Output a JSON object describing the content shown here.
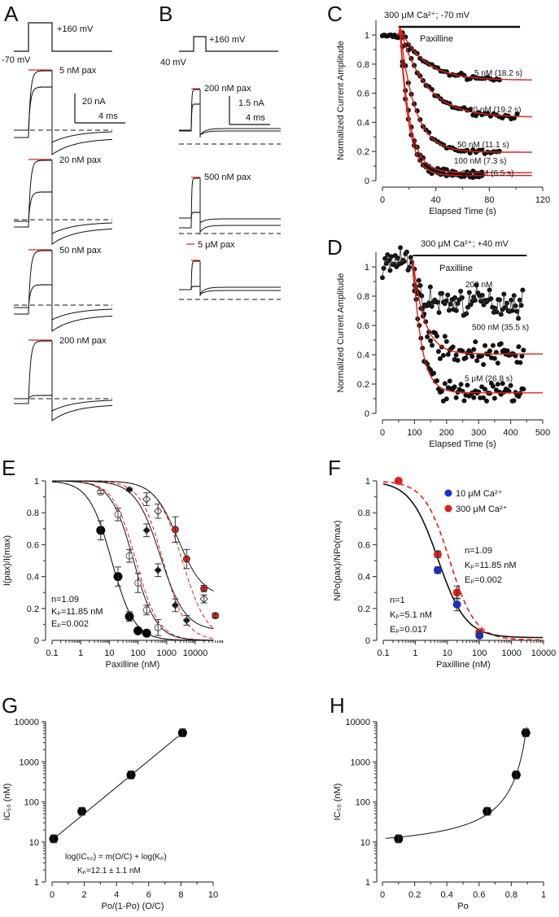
{
  "colors": {
    "fit_red": "#e0201b",
    "blue": "#1a2ee0",
    "red_point": "#e0201b",
    "black": "#111111"
  },
  "chart_data": [
    {
      "panel": "A",
      "type": "line",
      "protocol": {
        "holding": "-70 mV",
        "step": "+160 mV"
      },
      "traces": [
        {
          "label": "5 nM pax"
        },
        {
          "label": "20 nM pax"
        },
        {
          "label": "50 nM pax"
        },
        {
          "label": "200 nM pax"
        }
      ],
      "scale_bar": {
        "current": "20 nA",
        "time": "4 ms"
      }
    },
    {
      "panel": "B",
      "type": "line",
      "protocol": {
        "holding": "40 mV",
        "step": "+160 mV"
      },
      "traces": [
        {
          "label": "200 nM pax"
        },
        {
          "label": "500 nM pax"
        },
        {
          "label": "5 μM pax"
        }
      ],
      "scale_bar": {
        "current": "1.5 nA",
        "time": "4 ms"
      }
    },
    {
      "panel": "C",
      "type": "scatter",
      "title": "300 μM Ca²⁺; -70 mV",
      "bar_label": "Paxilline",
      "xlabel": "Elapsed Time (s)",
      "ylabel": "Normalized Current Amplitude",
      "xlim": [
        0,
        120
      ],
      "ylim": [
        0,
        1.1
      ],
      "xticks": [
        0,
        40,
        80,
        120
      ],
      "yticks": [
        0,
        0.2,
        0.4,
        0.6,
        0.8,
        1
      ],
      "application_start": 15,
      "application_end": 103,
      "series": [
        {
          "label": "5 nM (18.2 s)",
          "plateau": 0.69,
          "tau": 18.2,
          "t_end": 88
        },
        {
          "label": "20 nM (19.2 s)",
          "plateau": 0.435,
          "tau": 19.2,
          "t_end": 102
        },
        {
          "label": "50 nM (11.1 s)",
          "plateau": 0.195,
          "tau": 11.1,
          "t_end": 88
        },
        {
          "label": "100 nM (7.3 s)",
          "plateau": 0.055,
          "tau": 7.3,
          "t_end": 75
        },
        {
          "label": "200 nM (6.5 s)",
          "plateau": 0.035,
          "tau": 6.5,
          "t_end": 75
        }
      ]
    },
    {
      "panel": "D",
      "type": "scatter",
      "title": "300 μM Ca²⁺; +40 mV",
      "bar_label": "Paxilline",
      "xlabel": "Elapsed Time (s)",
      "ylabel": "Normalized Current Amplitude",
      "xlim": [
        0,
        500
      ],
      "ylim": [
        0,
        1.1
      ],
      "xticks": [
        0,
        100,
        200,
        300,
        400,
        500
      ],
      "yticks": [
        0,
        0.2,
        0.4,
        0.6,
        0.8,
        1
      ],
      "application_start": 95,
      "application_end": 450,
      "series": [
        {
          "label": "200 nM",
          "plateau": 0.76,
          "tau": null
        },
        {
          "label": "500 nM (35.5 s)",
          "plateau": 0.405,
          "tau": 35.5
        },
        {
          "label": "5 μM (26.8 s)",
          "plateau": 0.14,
          "tau": 26.8
        }
      ]
    },
    {
      "panel": "E",
      "type": "scatter",
      "xlabel": "Paxilline (nM)",
      "ylabel": "I(pax)/I(max)",
      "xscale": "log",
      "xlim": [
        0.1,
        50000
      ],
      "ylim": [
        0,
        1
      ],
      "xticks": [
        "0.1",
        "1",
        "10",
        "100",
        "1000",
        "10000"
      ],
      "yticks": [
        0,
        0.2,
        0.4,
        0.6,
        0.8,
        1
      ],
      "annotation": [
        "n=1.09",
        "Kₚ=11.85 nM",
        "Eₚ=0.002"
      ],
      "series": [
        {
          "marker": "filled-circle",
          "x": [
            5,
            20,
            50,
            100,
            200
          ],
          "y": [
            0.69,
            0.4,
            0.15,
            0.06,
            0.045
          ],
          "err": [
            0.06,
            0.06,
            0.03,
            0,
            0
          ]
        },
        {
          "marker": "open-circle",
          "x": [
            5,
            20,
            50,
            100,
            200,
            500
          ],
          "y": [
            0.93,
            0.79,
            0.53,
            0.36,
            0.19,
            0.08
          ],
          "err": [
            0.01,
            0.04,
            0.04,
            0.06,
            0.03,
            0.05
          ]
        },
        {
          "marker": "filled-diamond",
          "x": [
            50,
            200,
            500,
            2000,
            5000
          ],
          "y": [
            0.945,
            0.69,
            0.44,
            0.22,
            0.125
          ],
          "err": [
            0.01,
            0.04,
            0.04,
            0.04,
            0.03
          ]
        },
        {
          "marker": "open-diamond",
          "x": [
            200,
            500,
            20000
          ],
          "y": [
            0.885,
            0.81,
            0.26
          ],
          "err": [
            0.04,
            0.045,
            0.025
          ]
        },
        {
          "marker": "red-circle",
          "x": [
            2000,
            5000,
            20000,
            50000
          ],
          "y": [
            0.695,
            0.51,
            0.325,
            0.155
          ],
          "err": [
            0.08,
            0.06,
            0.02,
            0.015
          ]
        }
      ],
      "fits_black": [
        {
          "ic50": 12,
          "n": 1.09,
          "min": 0
        },
        {
          "ic50": 70,
          "n": 1.1,
          "min": 0
        },
        {
          "ic50": 600,
          "n": 1.0,
          "min": 0.06
        },
        {
          "ic50": 2500,
          "n": 1.0,
          "min": 0.27
        }
      ],
      "fits_red_dashed": [
        {
          "ic50": 12,
          "n": 1.09,
          "min": 0
        },
        {
          "ic50": 85,
          "n": 1.1,
          "min": 0
        },
        {
          "ic50": 750,
          "n": 1.1,
          "min": 0
        },
        {
          "ic50": 3500,
          "n": 1.0,
          "min": 0
        }
      ]
    },
    {
      "panel": "F",
      "type": "scatter",
      "xlabel": "Paxilline (nM)",
      "ylabel": "NPo(pax)/NPo(max)",
      "xscale": "log",
      "xlim": [
        0.1,
        10000
      ],
      "ylim": [
        0,
        1
      ],
      "xticks": [
        "0.1",
        "1",
        "10",
        "100",
        "1000",
        "10000"
      ],
      "yticks": [
        0,
        0.2,
        0.4,
        0.6,
        0.8,
        1
      ],
      "legend_position": "top-right",
      "series": [
        {
          "name": "10 μM Ca²⁺",
          "color": "#1a2ee0",
          "x": [
            5,
            20,
            100
          ],
          "y": [
            0.44,
            0.225,
            0.03
          ],
          "err": [
            0.02,
            0.04,
            0.01
          ]
        },
        {
          "name": "300 μM Ca²⁺",
          "color": "#e0201b",
          "x": [
            0.3,
            5,
            20,
            100
          ],
          "y": [
            1.0,
            0.54,
            0.3,
            0.05
          ],
          "err": [
            0,
            0.02,
            0.04,
            0.01
          ]
        }
      ],
      "annotation_300": [
        "n=1.09",
        "Kₚ=11.85 nM",
        "Eₚ=0.002"
      ],
      "annotation_10": [
        "n=1",
        "Kₚ=5.1 nM",
        "Eₚ=0.017"
      ],
      "fit_black": {
        "ic50": 5.1,
        "n": 1,
        "min": 0.017
      },
      "fit_red_dashed": {
        "ic50": 11.85,
        "n": 1.09,
        "min": 0.002
      }
    },
    {
      "panel": "G",
      "type": "scatter",
      "xlabel": "Po/(1-Po)  (O/C)",
      "ylabel": "IC₅₀  (nM)",
      "yscale": "log",
      "xlim": [
        0,
        10
      ],
      "ylim": [
        1,
        10000
      ],
      "xticks": [
        0,
        2,
        4,
        6,
        8,
        10
      ],
      "yticks": [
        "1",
        "10",
        "100",
        "1000",
        "10000"
      ],
      "x": [
        0.1,
        1.85,
        4.9,
        8.1
      ],
      "y": [
        12,
        58,
        470,
        5300
      ],
      "equation": "log(IC₅₀) = m(O/C) + log(Kₚ)",
      "fit_result": "Kₚ=12.1 ± 1.1 nM"
    },
    {
      "panel": "H",
      "type": "scatter",
      "xlabel": "Po",
      "ylabel": "IC₅₀  (nM)",
      "yscale": "log",
      "xlim": [
        0,
        1
      ],
      "ylim": [
        1,
        10000
      ],
      "xticks": [
        "0",
        "0.2",
        "0.4",
        "0.6",
        "0.8",
        "1"
      ],
      "yticks": [
        "1",
        "10",
        "100",
        "1000",
        "10000"
      ],
      "x": [
        0.1,
        0.65,
        0.83,
        0.89
      ],
      "y": [
        12,
        58,
        470,
        5300
      ]
    }
  ]
}
